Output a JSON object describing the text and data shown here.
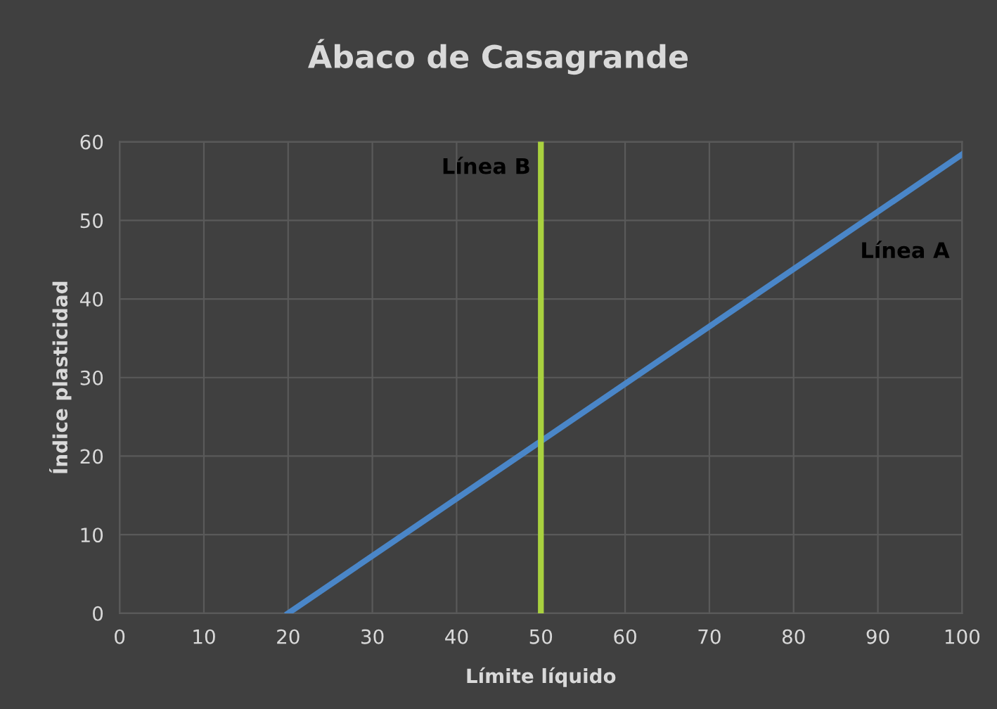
{
  "chart_data": {
    "type": "line",
    "title": "Ábaco de Casagrande",
    "xlabel": "Límite líquido",
    "ylabel": "Índice plasticidad",
    "series": [
      {
        "name": "Línea A",
        "color": "#4a86c8",
        "x": [
          20,
          100
        ],
        "values": [
          0,
          58.4
        ]
      },
      {
        "name": "Línea B",
        "color": "#a9d13f",
        "x": [
          50,
          50
        ],
        "values": [
          0,
          60
        ]
      }
    ],
    "xlim": [
      0,
      100
    ],
    "ylim": [
      0,
      60
    ],
    "xticks": [
      0,
      10,
      20,
      30,
      40,
      50,
      60,
      70,
      80,
      90,
      100
    ],
    "yticks": [
      0,
      10,
      20,
      30,
      40,
      50,
      60
    ],
    "grid": true,
    "legend": false,
    "marker": "none",
    "line_style": "solid"
  }
}
